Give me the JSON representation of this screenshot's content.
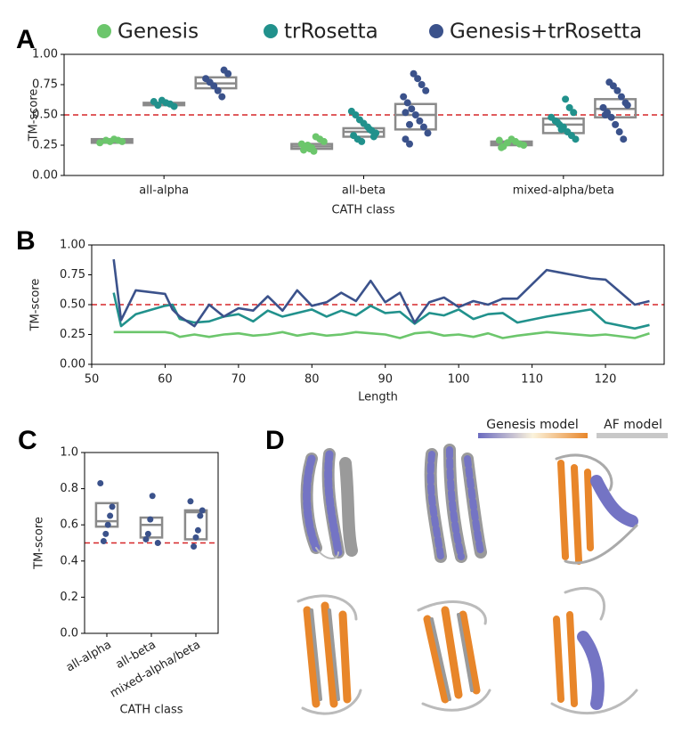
{
  "panel_labels": [
    "A",
    "B",
    "C",
    "D"
  ],
  "structure_legend": {
    "items": [
      "Genesis model",
      "AF model"
    ]
  },
  "chart_data": [
    {
      "type": "box",
      "x_label": "CATH class",
      "y_label": "TM-score",
      "legend": true,
      "categories": [
        "all-alpha",
        "all-beta",
        "mixed-alpha/beta"
      ],
      "ylim": [
        0,
        1
      ],
      "yticks": [
        {
          "value": 0,
          "label": "0.00"
        },
        {
          "value": 0.25,
          "label": "0.25"
        },
        {
          "value": 0.5,
          "label": "0.50"
        },
        {
          "value": 0.75,
          "label": "0.75"
        },
        {
          "value": 1,
          "label": "1.00"
        }
      ],
      "reference_line": {
        "value": 0.5,
        "color": "#d62728"
      },
      "series": [
        {
          "name": "Genesis",
          "color": "#6cc66c",
          "boxes": [
            {
              "q1": 0.27,
              "median": 0.285,
              "q3": 0.3
            },
            {
              "q1": 0.22,
              "median": 0.24,
              "q3": 0.26
            },
            {
              "q1": 0.25,
              "median": 0.265,
              "q3": 0.28
            }
          ],
          "points": [
            [
              0.27,
              0.28,
              0.29,
              0.3,
              0.28,
              0.29
            ],
            [
              0.2,
              0.22,
              0.24,
              0.26,
              0.28,
              0.3,
              0.32,
              0.23,
              0.25,
              0.21
            ],
            [
              0.23,
              0.25,
              0.26,
              0.28,
              0.3,
              0.27,
              0.24,
              0.29
            ]
          ]
        },
        {
          "name": "trRosetta",
          "color": "#21918c",
          "boxes": [
            {
              "q1": 0.58,
              "median": 0.59,
              "q3": 0.6
            },
            {
              "q1": 0.32,
              "median": 0.36,
              "q3": 0.39
            },
            {
              "q1": 0.35,
              "median": 0.42,
              "q3": 0.47
            }
          ],
          "points": [
            [
              0.57,
              0.59,
              0.6,
              0.62,
              0.58,
              0.61
            ],
            [
              0.28,
              0.3,
              0.33,
              0.35,
              0.37,
              0.4,
              0.43,
              0.46,
              0.5,
              0.53,
              0.32,
              0.38
            ],
            [
              0.3,
              0.33,
              0.36,
              0.4,
              0.42,
              0.45,
              0.48,
              0.52,
              0.56,
              0.63,
              0.38,
              0.44
            ]
          ]
        },
        {
          "name": "Genesis+trRosetta",
          "color": "#3b528b",
          "boxes": [
            {
              "q1": 0.72,
              "median": 0.76,
              "q3": 0.81
            },
            {
              "q1": 0.38,
              "median": 0.5,
              "q3": 0.59
            },
            {
              "q1": 0.48,
              "median": 0.55,
              "q3": 0.63
            }
          ],
          "points": [
            [
              0.65,
              0.7,
              0.74,
              0.77,
              0.8,
              0.84,
              0.87
            ],
            [
              0.26,
              0.3,
              0.35,
              0.4,
              0.45,
              0.5,
              0.55,
              0.6,
              0.65,
              0.7,
              0.75,
              0.8,
              0.84,
              0.42,
              0.52
            ],
            [
              0.3,
              0.36,
              0.42,
              0.48,
              0.52,
              0.56,
              0.6,
              0.65,
              0.7,
              0.74,
              0.77,
              0.5,
              0.58
            ]
          ]
        }
      ]
    },
    {
      "type": "line",
      "x_label": "Length",
      "y_label": "TM-score",
      "x": [
        53,
        54,
        56,
        60,
        61,
        62,
        64,
        66,
        68,
        70,
        72,
        74,
        76,
        78,
        80,
        82,
        84,
        86,
        88,
        90,
        92,
        94,
        96,
        98,
        100,
        102,
        104,
        106,
        108,
        112,
        118,
        120,
        124,
        126
      ],
      "xlim": [
        50,
        128
      ],
      "xticks": [
        50,
        60,
        70,
        80,
        90,
        100,
        110,
        120
      ],
      "ylim": [
        0,
        1
      ],
      "yticks": [
        {
          "value": 0,
          "label": "0.00"
        },
        {
          "value": 0.25,
          "label": "0.25"
        },
        {
          "value": 0.5,
          "label": "0.50"
        },
        {
          "value": 0.75,
          "label": "0.75"
        },
        {
          "value": 1,
          "label": "1.00"
        }
      ],
      "reference_line": {
        "value": 0.5,
        "color": "#d62728"
      },
      "series": [
        {
          "color": "#6cc66c",
          "values": [
            0.27,
            0.27,
            0.27,
            0.27,
            0.26,
            0.23,
            0.25,
            0.23,
            0.25,
            0.26,
            0.24,
            0.25,
            0.27,
            0.24,
            0.26,
            0.24,
            0.25,
            0.27,
            0.26,
            0.25,
            0.22,
            0.26,
            0.27,
            0.24,
            0.25,
            0.23,
            0.26,
            0.22,
            0.24,
            0.27,
            0.24,
            0.25,
            0.22,
            0.26
          ]
        },
        {
          "color": "#21918c",
          "values": [
            0.6,
            0.32,
            0.42,
            0.49,
            0.5,
            0.38,
            0.35,
            0.36,
            0.4,
            0.42,
            0.36,
            0.45,
            0.4,
            0.43,
            0.46,
            0.4,
            0.45,
            0.41,
            0.49,
            0.43,
            0.44,
            0.34,
            0.43,
            0.41,
            0.46,
            0.38,
            0.42,
            0.43,
            0.35,
            0.4,
            0.46,
            0.35,
            0.3,
            0.33
          ]
        },
        {
          "color": "#3b528b",
          "values": [
            0.88,
            0.37,
            0.62,
            0.59,
            0.46,
            0.4,
            0.32,
            0.5,
            0.4,
            0.47,
            0.45,
            0.57,
            0.45,
            0.62,
            0.49,
            0.52,
            0.6,
            0.53,
            0.7,
            0.52,
            0.6,
            0.35,
            0.52,
            0.56,
            0.48,
            0.53,
            0.5,
            0.55,
            0.55,
            0.79,
            0.72,
            0.71,
            0.5,
            0.53
          ]
        }
      ]
    },
    {
      "type": "box",
      "x_label": "CATH class",
      "y_label": "TM-score",
      "legend": false,
      "categories": [
        "all-alpha",
        "all-beta",
        "mixed-alpha/beta"
      ],
      "ylim": [
        0,
        1
      ],
      "yticks": [
        {
          "value": 0,
          "label": "0.0"
        },
        {
          "value": 0.2,
          "label": "0.2"
        },
        {
          "value": 0.4,
          "label": "0.4"
        },
        {
          "value": 0.6,
          "label": "0.6"
        },
        {
          "value": 0.8,
          "label": "0.8"
        },
        {
          "value": 1,
          "label": "1.0"
        }
      ],
      "reference_line": {
        "value": 0.5,
        "color": "#d62728"
      },
      "series": [
        {
          "color": "#3b528b",
          "boxes": [
            {
              "q1": 0.59,
              "median": 0.62,
              "q3": 0.72
            },
            {
              "q1": 0.53,
              "median": 0.6,
              "q3": 0.64
            },
            {
              "q1": 0.52,
              "median": 0.67,
              "q3": 0.68
            }
          ],
          "points": [
            [
              0.83,
              0.7,
              0.65,
              0.6,
              0.55,
              0.51
            ],
            [
              0.76,
              0.63,
              0.55,
              0.52,
              0.5
            ],
            [
              0.73,
              0.68,
              0.65,
              0.57,
              0.53,
              0.48
            ]
          ]
        }
      ]
    }
  ]
}
